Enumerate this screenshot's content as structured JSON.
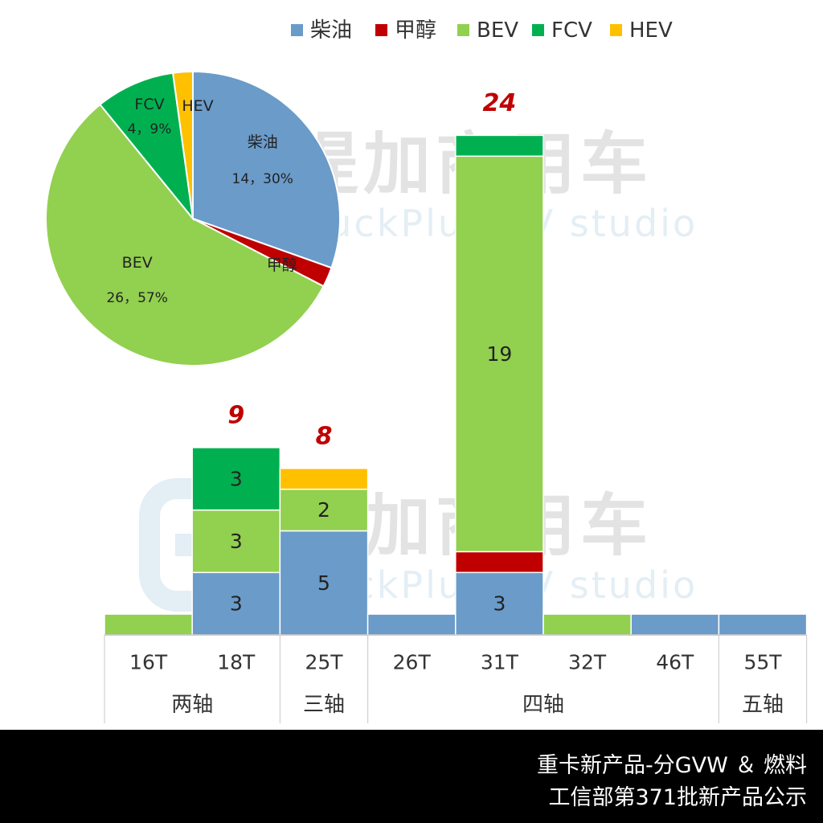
{
  "legend": [
    {
      "name": "柴油",
      "color": "#6A9BC9"
    },
    {
      "name": "甲醇",
      "color": "#C00000"
    },
    {
      "name": "BEV",
      "color": "#92D050"
    },
    {
      "name": "FCV",
      "color": "#00B050"
    },
    {
      "name": "HEV",
      "color": "#FFC000"
    }
  ],
  "watermark": {
    "brand_cn": "提加商用车",
    "brand_en": "TruckPlus CV studio"
  },
  "footer": {
    "line1": "重卡新产品-分GVW ＆ 燃料",
    "line2": "工信部第371批新产品公示"
  },
  "chart_data": [
    {
      "type": "pie",
      "slices": [
        {
          "name": "柴油",
          "value": 14,
          "label": "14，30%"
        },
        {
          "name": "甲醇",
          "value": 1,
          "label": ""
        },
        {
          "name": "BEV",
          "value": 26,
          "label": "26，57%"
        },
        {
          "name": "FCV",
          "value": 4,
          "label": "4，9%"
        },
        {
          "name": "HEV",
          "value": 1,
          "label": ""
        }
      ]
    },
    {
      "type": "bar",
      "stacked": true,
      "categories": [
        "16T",
        "18T",
        "25T",
        "26T",
        "31T",
        "32T",
        "46T",
        "55T"
      ],
      "groups": [
        {
          "label": "两轴",
          "start": 0,
          "end": 1
        },
        {
          "label": "三轴",
          "start": 2,
          "end": 2
        },
        {
          "label": "四轴",
          "start": 3,
          "end": 6
        },
        {
          "label": "五轴",
          "start": 7,
          "end": 7
        }
      ],
      "series": [
        {
          "name": "柴油",
          "values": [
            0,
            3,
            5,
            1,
            3,
            0,
            1,
            1
          ],
          "labels": [
            "",
            "3",
            "5",
            "",
            "3",
            "",
            "",
            ""
          ]
        },
        {
          "name": "甲醇",
          "values": [
            0,
            0,
            0,
            0,
            1,
            0,
            0,
            0
          ],
          "labels": [
            "",
            "",
            "",
            "",
            "",
            "",
            "",
            ""
          ]
        },
        {
          "name": "BEV",
          "values": [
            1,
            3,
            2,
            0,
            19,
            1,
            0,
            0
          ],
          "labels": [
            "",
            "3",
            "2",
            "",
            "19",
            "",
            "",
            ""
          ]
        },
        {
          "name": "FCV",
          "values": [
            0,
            3,
            0,
            0,
            1,
            0,
            0,
            0
          ],
          "labels": [
            "",
            "3",
            "",
            "",
            "",
            "",
            "",
            ""
          ]
        },
        {
          "name": "HEV",
          "values": [
            0,
            0,
            1,
            0,
            0,
            0,
            0,
            0
          ],
          "labels": [
            "",
            "",
            "",
            "",
            "",
            "",
            "",
            ""
          ]
        }
      ],
      "totals": [
        "",
        "9",
        "8",
        "",
        "24",
        "",
        "",
        ""
      ],
      "ylim": [
        0,
        24
      ]
    }
  ]
}
